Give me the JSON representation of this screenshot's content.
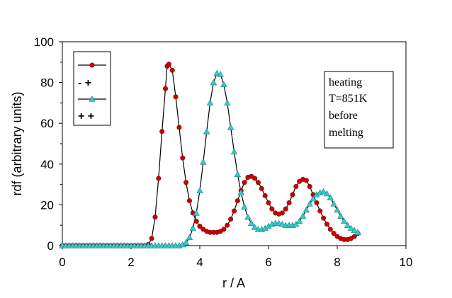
{
  "chart_data": {
    "type": "line",
    "xlabel": "r / A",
    "ylabel": "rdf (arbitrary units)",
    "xlim": [
      0,
      10
    ],
    "ylim": [
      0,
      100
    ],
    "xticks": [
      "0",
      "2",
      "4",
      "6",
      "8",
      "10"
    ],
    "yticks": [
      "0",
      "20",
      "40",
      "60",
      "80",
      "100"
    ],
    "grid": false,
    "legend_position": "top-left",
    "legend_entries": [
      {
        "marker": "circle",
        "color": "#cc0000",
        "label": ""
      },
      {
        "marker": "none",
        "label": "- +"
      },
      {
        "marker": "triangle",
        "color": "#33cccc",
        "label": ""
      },
      {
        "marker": "none",
        "label": "+ +"
      }
    ],
    "annotation": [
      "heating",
      "T=851K",
      "before",
      "melting"
    ],
    "series": [
      {
        "marker": "circle",
        "color": "#cc0000",
        "points": [
          [
            0,
            0
          ],
          [
            0.1,
            0
          ],
          [
            0.2,
            0
          ],
          [
            0.3,
            0
          ],
          [
            0.4,
            0
          ],
          [
            0.5,
            0
          ],
          [
            0.6,
            0
          ],
          [
            0.7,
            0
          ],
          [
            0.8,
            0
          ],
          [
            0.9,
            0
          ],
          [
            1.0,
            0
          ],
          [
            1.1,
            0
          ],
          [
            1.2,
            0
          ],
          [
            1.3,
            0
          ],
          [
            1.4,
            0
          ],
          [
            1.5,
            0
          ],
          [
            1.6,
            0
          ],
          [
            1.7,
            0
          ],
          [
            1.8,
            0
          ],
          [
            1.9,
            0
          ],
          [
            2.0,
            0
          ],
          [
            2.1,
            0
          ],
          [
            2.2,
            0
          ],
          [
            2.3,
            0
          ],
          [
            2.4,
            0
          ],
          [
            2.5,
            0.5
          ],
          [
            2.6,
            3.5
          ],
          [
            2.7,
            14
          ],
          [
            2.8,
            33
          ],
          [
            2.9,
            56
          ],
          [
            3.0,
            77
          ],
          [
            3.05,
            88
          ],
          [
            3.1,
            89
          ],
          [
            3.2,
            86
          ],
          [
            3.3,
            73
          ],
          [
            3.4,
            58
          ],
          [
            3.5,
            43
          ],
          [
            3.6,
            31
          ],
          [
            3.7,
            22
          ],
          [
            3.8,
            16
          ],
          [
            3.9,
            12
          ],
          [
            4.0,
            9.5
          ],
          [
            4.1,
            8
          ],
          [
            4.2,
            7
          ],
          [
            4.3,
            6.5
          ],
          [
            4.4,
            6.5
          ],
          [
            4.5,
            6.5
          ],
          [
            4.6,
            7
          ],
          [
            4.7,
            8
          ],
          [
            4.8,
            10
          ],
          [
            4.9,
            13
          ],
          [
            5.0,
            17
          ],
          [
            5.1,
            22
          ],
          [
            5.2,
            27
          ],
          [
            5.3,
            31
          ],
          [
            5.4,
            33.5
          ],
          [
            5.5,
            34
          ],
          [
            5.6,
            33
          ],
          [
            5.7,
            31
          ],
          [
            5.8,
            28
          ],
          [
            5.9,
            24.5
          ],
          [
            6.0,
            21
          ],
          [
            6.1,
            18
          ],
          [
            6.2,
            16
          ],
          [
            6.3,
            15.5
          ],
          [
            6.4,
            16
          ],
          [
            6.5,
            18
          ],
          [
            6.6,
            21
          ],
          [
            6.7,
            25
          ],
          [
            6.8,
            29
          ],
          [
            6.9,
            31.5
          ],
          [
            7.0,
            32.5
          ],
          [
            7.1,
            32
          ],
          [
            7.2,
            29
          ],
          [
            7.3,
            25
          ],
          [
            7.4,
            21
          ],
          [
            7.5,
            17
          ],
          [
            7.6,
            13.5
          ],
          [
            7.7,
            10.5
          ],
          [
            7.8,
            8
          ],
          [
            7.9,
            6
          ],
          [
            8.0,
            4.5
          ],
          [
            8.1,
            3.5
          ],
          [
            8.2,
            3
          ],
          [
            8.3,
            3
          ],
          [
            8.4,
            3.5
          ],
          [
            8.5,
            4.5
          ],
          [
            8.6,
            6
          ]
        ]
      },
      {
        "marker": "triangle",
        "color": "#33cccc",
        "points": [
          [
            0,
            0
          ],
          [
            0.1,
            0
          ],
          [
            0.2,
            0
          ],
          [
            0.3,
            0
          ],
          [
            0.4,
            0
          ],
          [
            0.5,
            0
          ],
          [
            0.6,
            0
          ],
          [
            0.7,
            0
          ],
          [
            0.8,
            0
          ],
          [
            0.9,
            0
          ],
          [
            1.0,
            0
          ],
          [
            1.1,
            0
          ],
          [
            1.2,
            0
          ],
          [
            1.3,
            0
          ],
          [
            1.4,
            0
          ],
          [
            1.5,
            0
          ],
          [
            1.6,
            0
          ],
          [
            1.7,
            0
          ],
          [
            1.8,
            0
          ],
          [
            1.9,
            0
          ],
          [
            2.0,
            0
          ],
          [
            2.1,
            0
          ],
          [
            2.2,
            0
          ],
          [
            2.3,
            0
          ],
          [
            2.4,
            0
          ],
          [
            2.5,
            0
          ],
          [
            2.6,
            0
          ],
          [
            2.7,
            0
          ],
          [
            2.8,
            0
          ],
          [
            2.9,
            0
          ],
          [
            3.0,
            0
          ],
          [
            3.1,
            0
          ],
          [
            3.2,
            0
          ],
          [
            3.3,
            0
          ],
          [
            3.4,
            0
          ],
          [
            3.5,
            0.5
          ],
          [
            3.6,
            1.5
          ],
          [
            3.7,
            4
          ],
          [
            3.8,
            8.5
          ],
          [
            3.9,
            16
          ],
          [
            4.0,
            27
          ],
          [
            4.1,
            41
          ],
          [
            4.2,
            56
          ],
          [
            4.3,
            70
          ],
          [
            4.4,
            80
          ],
          [
            4.5,
            84.5
          ],
          [
            4.6,
            84
          ],
          [
            4.7,
            79
          ],
          [
            4.8,
            70
          ],
          [
            4.9,
            58
          ],
          [
            5.0,
            46
          ],
          [
            5.1,
            35
          ],
          [
            5.2,
            26
          ],
          [
            5.3,
            19
          ],
          [
            5.4,
            14
          ],
          [
            5.5,
            11
          ],
          [
            5.6,
            9
          ],
          [
            5.7,
            8
          ],
          [
            5.8,
            8
          ],
          [
            5.9,
            8.5
          ],
          [
            6.0,
            9.5
          ],
          [
            6.1,
            10.5
          ],
          [
            6.2,
            11
          ],
          [
            6.3,
            11
          ],
          [
            6.4,
            10.5
          ],
          [
            6.5,
            10
          ],
          [
            6.6,
            10
          ],
          [
            6.7,
            10
          ],
          [
            6.8,
            10.5
          ],
          [
            6.9,
            12
          ],
          [
            7.0,
            14.5
          ],
          [
            7.1,
            17.5
          ],
          [
            7.2,
            20.5
          ],
          [
            7.3,
            23
          ],
          [
            7.4,
            25
          ],
          [
            7.5,
            26
          ],
          [
            7.6,
            26.5
          ],
          [
            7.7,
            25.5
          ],
          [
            7.8,
            23.5
          ],
          [
            7.9,
            20.5
          ],
          [
            8.0,
            17.5
          ],
          [
            8.1,
            14.5
          ],
          [
            8.2,
            12
          ],
          [
            8.3,
            10
          ],
          [
            8.4,
            8.5
          ],
          [
            8.5,
            7.5
          ],
          [
            8.6,
            6.5
          ]
        ]
      }
    ]
  }
}
